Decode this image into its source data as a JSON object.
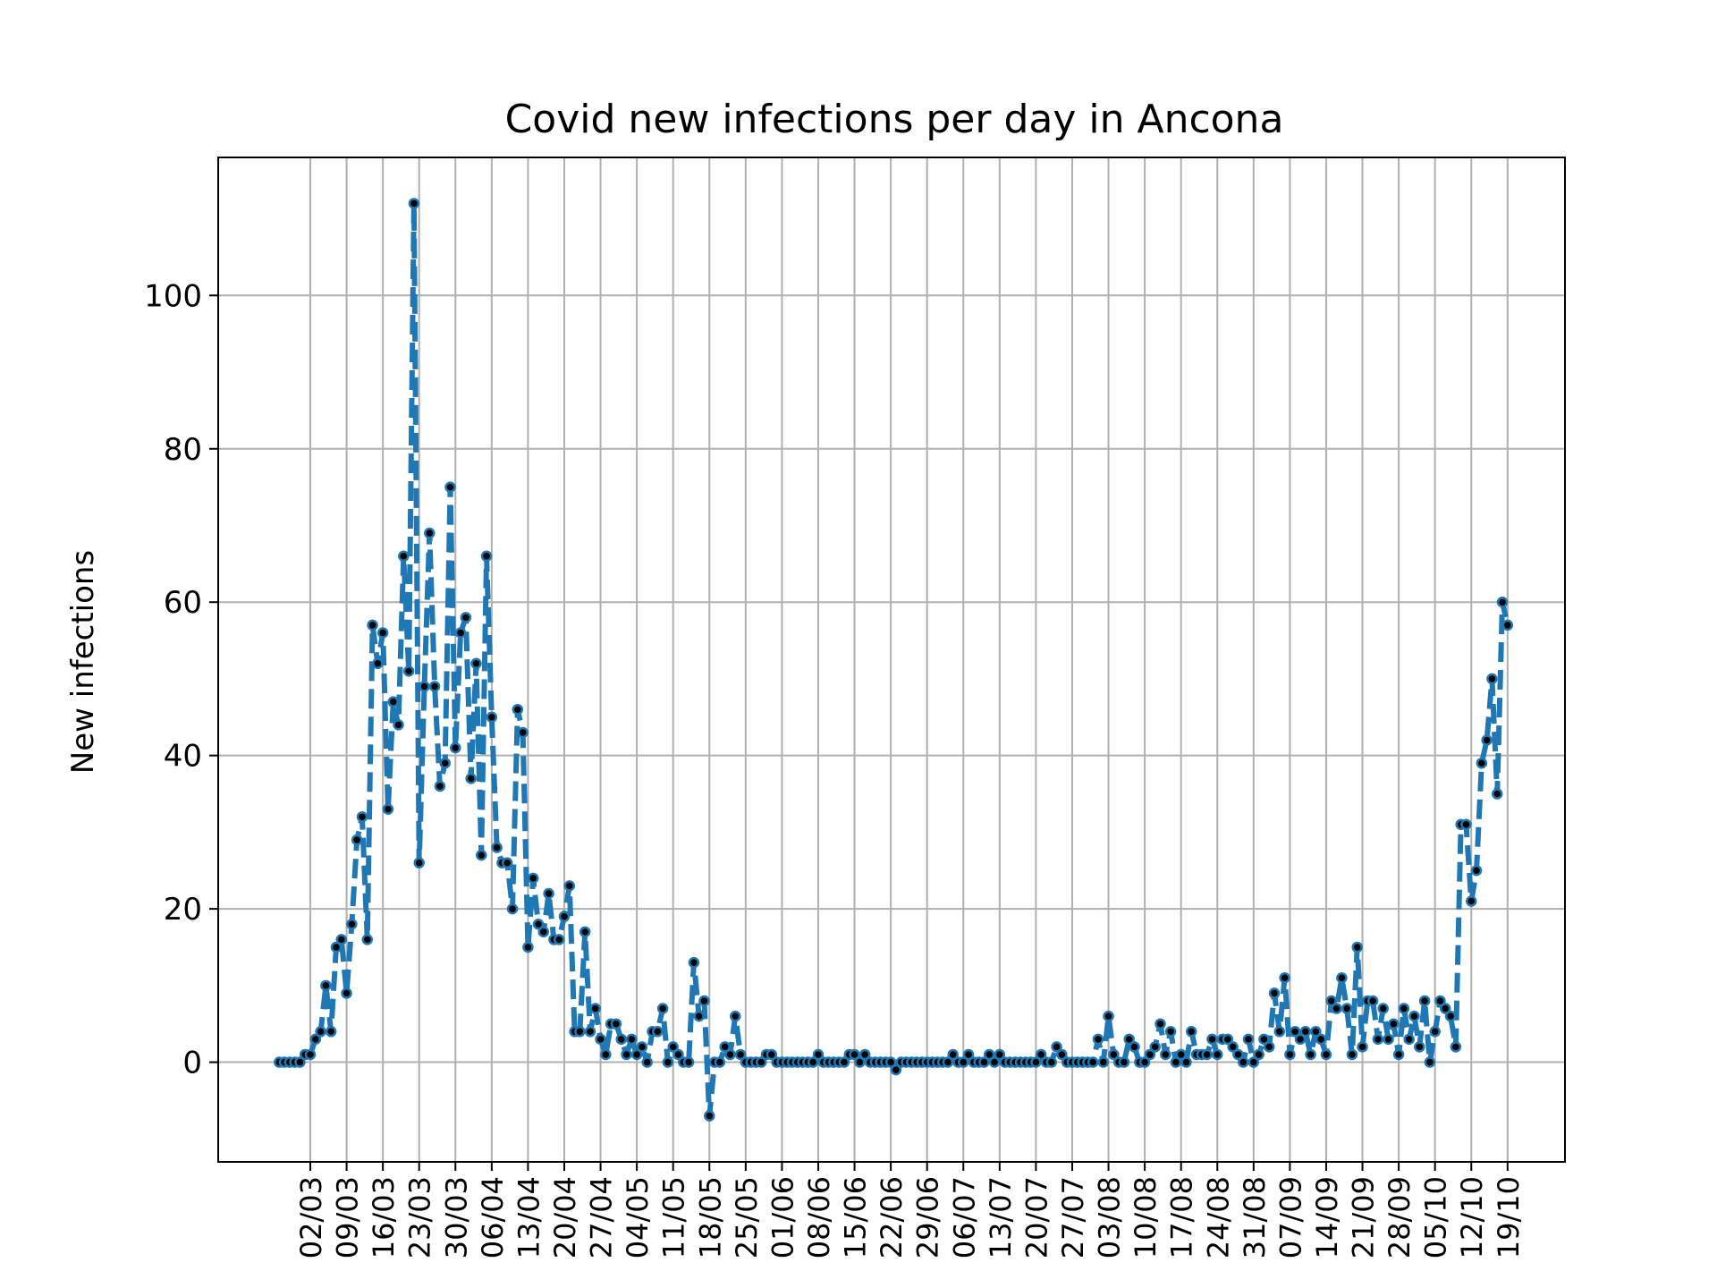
{
  "chart_data": {
    "type": "line",
    "title": "Covid new infections per day in Ancona",
    "xlabel": "",
    "ylabel": "New infections",
    "x_ticks": [
      "02/03",
      "09/03",
      "16/03",
      "23/03",
      "30/03",
      "06/04",
      "13/04",
      "20/04",
      "27/04",
      "04/05",
      "11/05",
      "18/05",
      "25/05",
      "01/06",
      "08/06",
      "15/06",
      "22/06",
      "29/06",
      "06/07",
      "13/07",
      "20/07",
      "27/07",
      "03/08",
      "10/08",
      "17/08",
      "24/08",
      "31/08",
      "07/09",
      "14/09",
      "21/09",
      "28/09",
      "05/10",
      "12/10",
      "19/10"
    ],
    "y_ticks": [
      0,
      20,
      40,
      60,
      80,
      100
    ],
    "ylim": [
      -13,
      118
    ],
    "grid": true,
    "line_color": "#1f77b4",
    "marker_color": "#000000",
    "start_offset_days": -6,
    "values": [
      0,
      0,
      0,
      0,
      0,
      1,
      1,
      3,
      4,
      10,
      4,
      15,
      16,
      9,
      18,
      29,
      32,
      16,
      57,
      52,
      56,
      33,
      47,
      44,
      66,
      51,
      112,
      26,
      49,
      69,
      49,
      36,
      39,
      75,
      41,
      56,
      58,
      37,
      52,
      27,
      66,
      45,
      28,
      26,
      26,
      20,
      46,
      43,
      15,
      24,
      18,
      17,
      22,
      16,
      16,
      19,
      23,
      4,
      4,
      17,
      4,
      7,
      3,
      1,
      5,
      5,
      3,
      1,
      3,
      1,
      2,
      0,
      4,
      4,
      7,
      0,
      2,
      1,
      0,
      0,
      13,
      6,
      8,
      -7,
      0,
      0,
      2,
      1,
      6,
      1,
      0,
      0,
      0,
      0,
      1,
      1,
      0,
      0,
      0,
      0,
      0,
      0,
      0,
      0,
      1,
      0,
      0,
      0,
      0,
      0,
      1,
      1,
      0,
      1,
      0,
      0,
      0,
      0,
      0,
      -1,
      0,
      0,
      0,
      0,
      0,
      0,
      0,
      0,
      0,
      0,
      1,
      0,
      0,
      1,
      0,
      0,
      0,
      1,
      0,
      1,
      0,
      0,
      0,
      0,
      0,
      0,
      0,
      1,
      0,
      0,
      2,
      1,
      0,
      0,
      0,
      0,
      0,
      0,
      3,
      0,
      6,
      1,
      0,
      0,
      3,
      2,
      0,
      0,
      1,
      2,
      5,
      1,
      4,
      0,
      1,
      0,
      4,
      1,
      1,
      1,
      3,
      1,
      3,
      3,
      2,
      1,
      0,
      3,
      0,
      1,
      3,
      2,
      9,
      4,
      11,
      1,
      4,
      3,
      4,
      1,
      4,
      3,
      1,
      8,
      7,
      11,
      7,
      1,
      15,
      2,
      8,
      8,
      3,
      7,
      3,
      5,
      1,
      7,
      3,
      6,
      2,
      8,
      0,
      4,
      8,
      7,
      6,
      2,
      31,
      31,
      21,
      25,
      39,
      42,
      50,
      35,
      60,
      57
    ]
  }
}
